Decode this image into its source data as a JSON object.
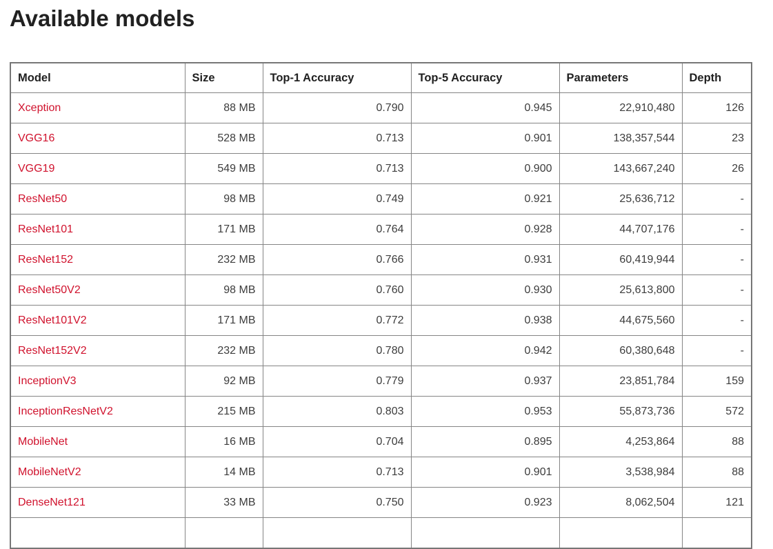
{
  "page": {
    "title": "Available models"
  },
  "table": {
    "headers": [
      "Model",
      "Size",
      "Top-1 Accuracy",
      "Top-5 Accuracy",
      "Parameters",
      "Depth"
    ],
    "rows": [
      {
        "model": "Xception",
        "size": "88 MB",
        "top1": "0.790",
        "top5": "0.945",
        "params": "22,910,480",
        "depth": "126"
      },
      {
        "model": "VGG16",
        "size": "528 MB",
        "top1": "0.713",
        "top5": "0.901",
        "params": "138,357,544",
        "depth": "23"
      },
      {
        "model": "VGG19",
        "size": "549 MB",
        "top1": "0.713",
        "top5": "0.900",
        "params": "143,667,240",
        "depth": "26"
      },
      {
        "model": "ResNet50",
        "size": "98 MB",
        "top1": "0.749",
        "top5": "0.921",
        "params": "25,636,712",
        "depth": "-"
      },
      {
        "model": "ResNet101",
        "size": "171 MB",
        "top1": "0.764",
        "top5": "0.928",
        "params": "44,707,176",
        "depth": "-"
      },
      {
        "model": "ResNet152",
        "size": "232 MB",
        "top1": "0.766",
        "top5": "0.931",
        "params": "60,419,944",
        "depth": "-"
      },
      {
        "model": "ResNet50V2",
        "size": "98 MB",
        "top1": "0.760",
        "top5": "0.930",
        "params": "25,613,800",
        "depth": "-"
      },
      {
        "model": "ResNet101V2",
        "size": "171 MB",
        "top1": "0.772",
        "top5": "0.938",
        "params": "44,675,560",
        "depth": "-"
      },
      {
        "model": "ResNet152V2",
        "size": "232 MB",
        "top1": "0.780",
        "top5": "0.942",
        "params": "60,380,648",
        "depth": "-"
      },
      {
        "model": "InceptionV3",
        "size": "92 MB",
        "top1": "0.779",
        "top5": "0.937",
        "params": "23,851,784",
        "depth": "159"
      },
      {
        "model": "InceptionResNetV2",
        "size": "215 MB",
        "top1": "0.803",
        "top5": "0.953",
        "params": "55,873,736",
        "depth": "572"
      },
      {
        "model": "MobileNet",
        "size": "16 MB",
        "top1": "0.704",
        "top5": "0.895",
        "params": "4,253,864",
        "depth": "88"
      },
      {
        "model": "MobileNetV2",
        "size": "14 MB",
        "top1": "0.713",
        "top5": "0.901",
        "params": "3,538,984",
        "depth": "88"
      },
      {
        "model": "DenseNet121",
        "size": "33 MB",
        "top1": "0.750",
        "top5": "0.923",
        "params": "8,062,504",
        "depth": "121"
      }
    ]
  },
  "colors": {
    "link_red": "#d0112c",
    "border_inner": "#848484",
    "border_outer": "#767676",
    "heading_text": "#212121",
    "body_text": "#3c3c3c",
    "background": "#ffffff"
  }
}
